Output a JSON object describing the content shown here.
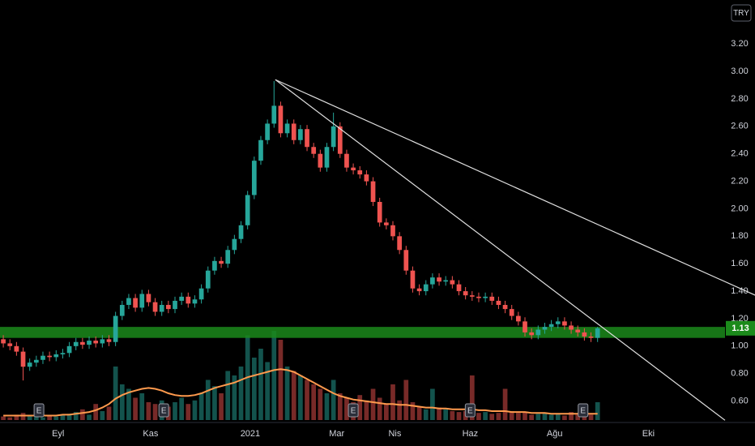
{
  "chart_data": {
    "type": "candlestick",
    "currency": "TRY",
    "open": [
      1.05,
      1.02,
      1.0,
      0.96,
      0.85,
      0.88,
      0.9,
      0.93,
      0.92,
      0.94,
      0.95,
      1.0,
      1.03,
      1.01,
      1.04,
      1.02,
      1.05,
      1.03,
      1.22,
      1.3,
      1.35,
      1.28,
      1.38,
      1.32,
      1.25,
      1.3,
      1.27,
      1.33,
      1.36,
      1.31,
      1.34,
      1.42,
      1.55,
      1.62,
      1.6,
      1.7,
      1.78,
      1.88,
      2.1,
      2.35,
      2.5,
      2.62,
      2.75,
      2.55,
      2.62,
      2.5,
      2.58,
      2.45,
      2.4,
      2.3,
      2.45,
      2.6,
      2.4,
      2.3,
      2.28,
      2.25,
      2.2,
      2.05,
      1.9,
      1.88,
      1.8,
      1.7,
      1.55,
      1.42,
      1.4,
      1.45,
      1.5,
      1.47,
      1.48,
      1.45,
      1.4,
      1.37,
      1.36,
      1.35,
      1.36,
      1.33,
      1.3,
      1.27,
      1.22,
      1.18,
      1.1,
      1.08,
      1.12,
      1.14,
      1.16,
      1.18,
      1.15,
      1.12,
      1.1,
      1.07,
      1.06
    ],
    "high": [
      1.08,
      1.05,
      1.03,
      0.99,
      0.91,
      0.93,
      0.96,
      0.96,
      0.97,
      0.98,
      1.03,
      1.06,
      1.06,
      1.07,
      1.07,
      1.08,
      1.08,
      1.25,
      1.33,
      1.38,
      1.38,
      1.41,
      1.41,
      1.35,
      1.33,
      1.33,
      1.36,
      1.39,
      1.39,
      1.37,
      1.45,
      1.58,
      1.65,
      1.65,
      1.73,
      1.81,
      1.91,
      2.13,
      2.38,
      2.53,
      2.65,
      2.93,
      2.78,
      2.65,
      2.65,
      2.61,
      2.61,
      2.48,
      2.43,
      2.48,
      2.7,
      2.63,
      2.43,
      2.33,
      2.31,
      2.28,
      2.23,
      2.08,
      1.93,
      1.91,
      1.83,
      1.73,
      1.58,
      1.45,
      1.48,
      1.53,
      1.53,
      1.51,
      1.51,
      1.48,
      1.43,
      1.4,
      1.39,
      1.39,
      1.39,
      1.36,
      1.33,
      1.3,
      1.25,
      1.21,
      1.13,
      1.15,
      1.17,
      1.19,
      1.21,
      1.21,
      1.18,
      1.15,
      1.13,
      1.1,
      1.14
    ],
    "low": [
      0.99,
      0.97,
      0.93,
      0.75,
      0.82,
      0.85,
      0.87,
      0.89,
      0.89,
      0.91,
      0.92,
      0.97,
      0.98,
      0.98,
      0.99,
      0.99,
      1.0,
      1.0,
      1.19,
      1.27,
      1.25,
      1.25,
      1.29,
      1.22,
      1.22,
      1.24,
      1.24,
      1.3,
      1.28,
      1.28,
      1.31,
      1.39,
      1.52,
      1.57,
      1.57,
      1.67,
      1.75,
      1.85,
      2.07,
      2.32,
      2.47,
      2.59,
      2.52,
      2.52,
      2.47,
      2.47,
      2.42,
      2.37,
      2.27,
      2.27,
      2.42,
      2.37,
      2.27,
      2.25,
      2.22,
      2.17,
      2.02,
      1.87,
      1.85,
      1.77,
      1.67,
      1.52,
      1.39,
      1.37,
      1.37,
      1.42,
      1.44,
      1.44,
      1.42,
      1.37,
      1.34,
      1.33,
      1.32,
      1.32,
      1.3,
      1.27,
      1.24,
      1.19,
      1.15,
      1.07,
      1.05,
      1.05,
      1.09,
      1.11,
      1.13,
      1.12,
      1.09,
      1.07,
      1.04,
      1.03,
      1.03
    ],
    "close": [
      1.02,
      1.0,
      0.96,
      0.85,
      0.88,
      0.9,
      0.93,
      0.92,
      0.94,
      0.95,
      1.0,
      1.03,
      1.01,
      1.04,
      1.02,
      1.05,
      1.03,
      1.22,
      1.3,
      1.35,
      1.28,
      1.38,
      1.32,
      1.25,
      1.3,
      1.27,
      1.33,
      1.36,
      1.31,
      1.34,
      1.42,
      1.55,
      1.62,
      1.6,
      1.7,
      1.78,
      1.88,
      2.1,
      2.35,
      2.5,
      2.62,
      2.75,
      2.55,
      2.62,
      2.5,
      2.58,
      2.45,
      2.4,
      2.3,
      2.45,
      2.6,
      2.4,
      2.3,
      2.28,
      2.25,
      2.2,
      2.05,
      1.9,
      1.88,
      1.8,
      1.7,
      1.55,
      1.42,
      1.4,
      1.45,
      1.5,
      1.47,
      1.48,
      1.45,
      1.4,
      1.37,
      1.36,
      1.35,
      1.36,
      1.33,
      1.3,
      1.27,
      1.22,
      1.18,
      1.1,
      1.08,
      1.12,
      1.14,
      1.16,
      1.18,
      1.15,
      1.12,
      1.1,
      1.07,
      1.06,
      1.13
    ],
    "volume": [
      4,
      3,
      6,
      8,
      5,
      4,
      3,
      5,
      4,
      6,
      7,
      9,
      12,
      6,
      18,
      10,
      15,
      60,
      40,
      35,
      25,
      30,
      20,
      18,
      22,
      15,
      20,
      25,
      18,
      22,
      30,
      45,
      38,
      30,
      55,
      50,
      60,
      95,
      70,
      80,
      65,
      100,
      90,
      60,
      55,
      50,
      45,
      40,
      35,
      30,
      45,
      30,
      25,
      20,
      28,
      22,
      35,
      25,
      18,
      40,
      22,
      45,
      20,
      15,
      12,
      35,
      14,
      12,
      10,
      9,
      10,
      50,
      8,
      9,
      7,
      8,
      35,
      10,
      8,
      9,
      6,
      7,
      8,
      6,
      7,
      5,
      9,
      6,
      5,
      6,
      20
    ],
    "volume_ma": [
      5,
      5,
      5,
      5,
      5,
      5,
      5,
      5,
      5,
      6,
      6,
      7,
      8,
      9,
      11,
      14,
      18,
      24,
      28,
      31,
      33,
      35,
      36,
      35,
      33,
      30,
      28,
      27,
      27,
      28,
      30,
      33,
      36,
      38,
      40,
      42,
      45,
      48,
      50,
      52,
      54,
      56,
      57,
      56,
      54,
      50,
      46,
      42,
      38,
      34,
      30,
      27,
      25,
      23,
      22,
      21,
      20,
      19,
      18,
      18,
      17,
      17,
      16,
      15,
      14,
      14,
      13,
      13,
      12,
      12,
      12,
      12,
      11,
      11,
      10,
      10,
      10,
      9,
      9,
      9,
      8,
      8,
      8,
      7,
      7,
      7,
      7,
      7,
      7,
      7,
      7
    ],
    "up_color": "#26a69a",
    "down_color": "#ef5350",
    "volume_ma_color": "#ff9a4d",
    "xlim": [
      -0.5,
      109.3
    ],
    "ylim": [
      0.45,
      3.52
    ],
    "yticks": [
      {
        "value": 0.6,
        "label": "0.60"
      },
      {
        "value": 0.8,
        "label": "0.80"
      },
      {
        "value": 1.0,
        "label": "1.00"
      },
      {
        "value": 1.2,
        "label": "1.20"
      },
      {
        "value": 1.4,
        "label": "1.40"
      },
      {
        "value": 1.6,
        "label": "1.60"
      },
      {
        "value": 1.8,
        "label": "1.80"
      },
      {
        "value": 2.0,
        "label": "2.00"
      },
      {
        "value": 2.2,
        "label": "2.20"
      },
      {
        "value": 2.4,
        "label": "2.40"
      },
      {
        "value": 2.6,
        "label": "2.60"
      },
      {
        "value": 2.8,
        "label": "2.80"
      },
      {
        "value": 3.0,
        "label": "3.00"
      },
      {
        "value": 3.2,
        "label": "3.20"
      }
    ],
    "xticks": [
      {
        "value": 8.3,
        "label": "Eyl"
      },
      {
        "value": 22.3,
        "label": "Kas"
      },
      {
        "value": 37.4,
        "label": "2021"
      },
      {
        "value": 50.5,
        "label": "Mar"
      },
      {
        "value": 59.3,
        "label": "Nis"
      },
      {
        "value": 70.7,
        "label": "Haz"
      },
      {
        "value": 83.5,
        "label": "Ağu"
      },
      {
        "value": 97.7,
        "label": "Eki"
      }
    ],
    "zone": {
      "range": [
        1.06,
        1.14
      ],
      "color": "#1b8a1b"
    },
    "trendlines": [
      {
        "x": [
          41.2,
          113.9
        ],
        "y": [
          2.94,
          1.37
        ]
      },
      {
        "x": [
          41.2,
          109.3
        ],
        "y": [
          2.94,
          0.46
        ]
      }
    ],
    "earnings": [
      {
        "x": 5.4,
        "label": "E"
      },
      {
        "x": 24.3,
        "label": "E"
      },
      {
        "x": 53.0,
        "label": "E"
      },
      {
        "x": 70.7,
        "label": "E"
      },
      {
        "x": 87.8,
        "label": "E"
      }
    ]
  }
}
